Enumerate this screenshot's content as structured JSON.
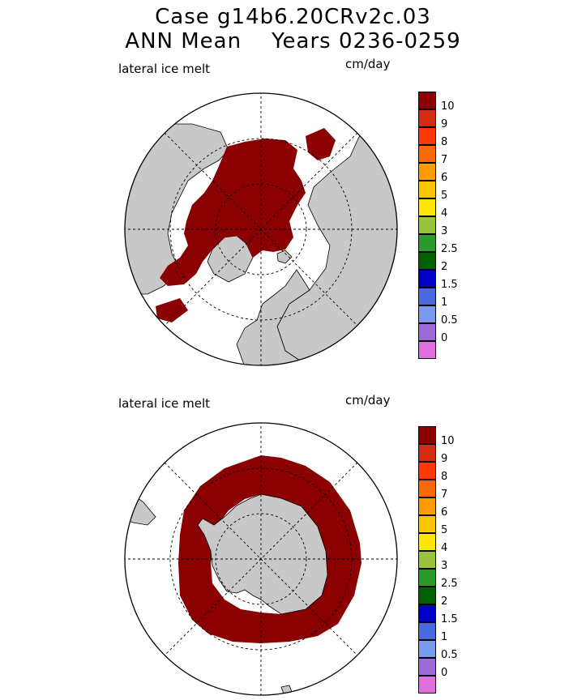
{
  "header": {
    "line1": "Case g14b6.20CRv2c.03",
    "line2": "ANN Mean    Years 0236-0259"
  },
  "panels": [
    {
      "id": "north",
      "label": "lateral ice melt",
      "units": "cm/day",
      "hemisphere": "Northern"
    },
    {
      "id": "south",
      "label": "lateral ice melt",
      "units": "cm/day",
      "hemisphere": "Southern"
    }
  ],
  "colorbar": {
    "labels": [
      "10",
      "9",
      "8",
      "7",
      "6",
      "5",
      "4",
      "3",
      "2.5",
      "2",
      "1.5",
      "1",
      "0.5",
      "0"
    ],
    "colors": [
      "#8b0000",
      "#d42a10",
      "#ff3a00",
      "#ff6a00",
      "#ff9a00",
      "#ffc400",
      "#ffe600",
      "#9ac43a",
      "#2a9a2a",
      "#006000",
      "#0000c8",
      "#4a6ae0",
      "#7a9af0",
      "#9a6ad8",
      "#e070e0"
    ]
  },
  "colors": {
    "ice_melt_max": "#8b0000",
    "land": "#c8c8c8",
    "ocean": "#ffffff",
    "grid": "#000000"
  }
}
